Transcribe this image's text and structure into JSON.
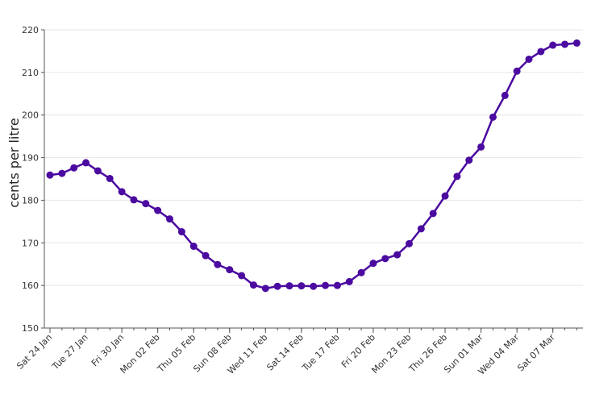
{
  "chart_data": {
    "type": "line",
    "title": "",
    "xlabel": "",
    "ylabel": "cents per litre",
    "ylim": [
      150,
      220
    ],
    "yticks": [
      150,
      160,
      170,
      180,
      190,
      200,
      210,
      220
    ],
    "grid": true,
    "legend": "none",
    "x_tick_labels": [
      "Sat 24 Jan",
      "Tue 27 Jan",
      "Fri 30 Jan",
      "Mon 02 Feb",
      "Thu 05 Feb",
      "Sun 08 Feb",
      "Wed 11 Feb",
      "Sat 14 Feb",
      "Tue 17 Feb",
      "Fri 20 Feb",
      "Mon 23 Feb",
      "Thu 26 Feb",
      "Sun 01 Mar",
      "Wed 04 Mar",
      "Sat 07 Mar"
    ],
    "series": [
      {
        "color": "#4b0aa0",
        "x": [
          "Sat 24 Jan",
          "Sun 25 Jan",
          "Mon 26 Jan",
          "Tue 27 Jan",
          "Wed 28 Jan",
          "Thu 29 Jan",
          "Fri 30 Jan",
          "Sat 31 Jan",
          "Sun 01 Feb",
          "Mon 02 Feb",
          "Tue 03 Feb",
          "Wed 04 Feb",
          "Thu 05 Feb",
          "Fri 06 Feb",
          "Sat 07 Feb",
          "Sun 08 Feb",
          "Mon 09 Feb",
          "Tue 10 Feb",
          "Wed 11 Feb",
          "Thu 12 Feb",
          "Fri 13 Feb",
          "Sat 14 Feb",
          "Sun 15 Feb",
          "Mon 16 Feb",
          "Tue 17 Feb",
          "Wed 18 Feb",
          "Thu 19 Feb",
          "Fri 20 Feb",
          "Sat 21 Feb",
          "Sun 22 Feb",
          "Mon 23 Feb",
          "Tue 24 Feb",
          "Wed 25 Feb",
          "Thu 26 Feb",
          "Fri 27 Feb",
          "Sat 28 Feb",
          "Sun 01 Mar",
          "Mon 02 Mar",
          "Tue 03 Mar",
          "Wed 04 Mar",
          "Thu 05 Mar",
          "Fri 06 Mar",
          "Sat 07 Mar",
          "Sun 08 Mar",
          "Mon 09 Mar"
        ],
        "values": [
          185.9,
          186.3,
          187.6,
          188.8,
          186.9,
          185.1,
          182.0,
          180.1,
          179.2,
          177.6,
          175.6,
          172.6,
          169.2,
          167.0,
          164.9,
          163.7,
          162.3,
          160.1,
          159.3,
          159.8,
          159.9,
          159.9,
          159.8,
          160.0,
          160.0,
          160.9,
          163.0,
          165.2,
          166.3,
          167.2,
          169.8,
          173.3,
          176.9,
          181.0,
          185.6,
          189.4,
          192.5,
          199.5,
          204.6,
          210.3,
          213.1,
          214.9,
          216.4,
          216.6,
          216.9
        ]
      }
    ]
  }
}
